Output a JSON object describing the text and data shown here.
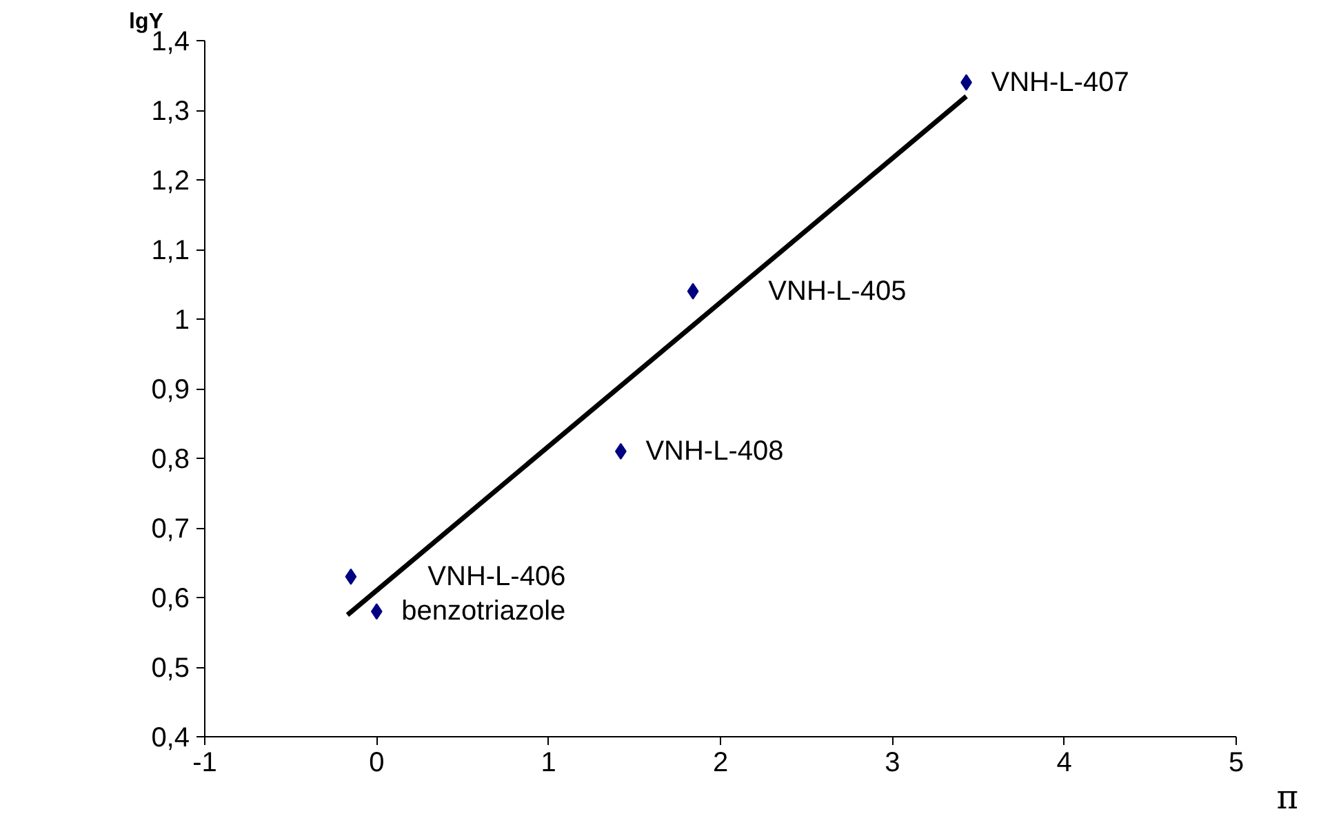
{
  "chart_data": {
    "type": "scatter",
    "xlabel": "π",
    "ylabel": "lgY",
    "xlim": [
      -1,
      5
    ],
    "ylim": [
      0.4,
      1.4
    ],
    "xticks": [
      -1,
      0,
      1,
      2,
      3,
      4,
      5
    ],
    "yticks": [
      {
        "value": 0.4,
        "label": "0,4"
      },
      {
        "value": 0.5,
        "label": "0,5"
      },
      {
        "value": 0.6,
        "label": "0,6"
      },
      {
        "value": 0.7,
        "label": "0,7"
      },
      {
        "value": 0.8,
        "label": "0,8"
      },
      {
        "value": 0.9,
        "label": "0,9"
      },
      {
        "value": 1,
        "label": "1"
      },
      {
        "value": 1.1,
        "label": "1,1"
      },
      {
        "value": 1.2,
        "label": "1,2"
      },
      {
        "value": 1.3,
        "label": "1,3"
      },
      {
        "value": 1.4,
        "label": "1,4"
      }
    ],
    "grid": false,
    "marker": "diamond",
    "series": [
      {
        "color": "#000080",
        "x": [
          -0.15,
          0,
          1.42,
          1.84,
          3.43
        ],
        "values": [
          0.63,
          0.58,
          0.81,
          1.04,
          1.34
        ]
      },
      {
        "type": "line",
        "color": "#000000",
        "x": [
          -0.17,
          3.43
        ],
        "values": [
          0.575,
          1.32
        ],
        "marker": "none",
        "line_style": "solid"
      }
    ],
    "annotations": [
      {
        "text": "VNH-L-406",
        "x": -0.15,
        "y": 0.63
      },
      {
        "text": "benzotriazole",
        "x": 0,
        "y": 0.58
      },
      {
        "text": "VNH-L-408",
        "x": 1.42,
        "y": 0.81
      },
      {
        "text": "VNH-L-405",
        "x": 1.84,
        "y": 1.04
      },
      {
        "text": "VNH-L-407",
        "x": 3.43,
        "y": 1.34
      }
    ]
  }
}
